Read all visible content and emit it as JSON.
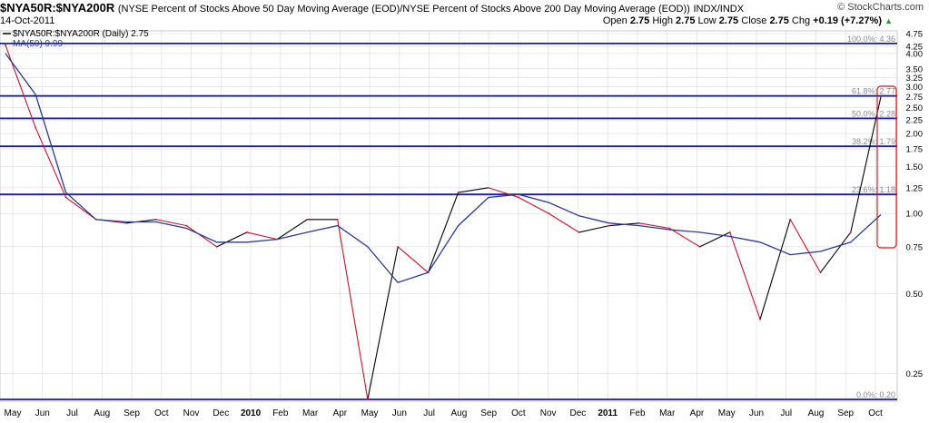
{
  "header": {
    "symbol": "$NYA50R:$NYA200R",
    "description": "(NYSE Percent of Stocks Above 50 Day Moving Average (EOD)/NYSE Percent of Stocks Above 200 Day Moving Average (EOD))",
    "exchange": "INDX/INDX",
    "credit": "© StockCharts.com",
    "date": "14-Oct-2011",
    "open_label": "Open",
    "open_value": "2.75",
    "high_label": "High",
    "high_value": "2.75",
    "low_label": "Low",
    "low_value": "2.75",
    "close_label": "Close",
    "close_value": "2.75",
    "chg_label": "Chg",
    "chg_value": "+0.19 (+7.27%)",
    "chg_icon": "up-triangle-icon"
  },
  "legend": {
    "series_label": "$NYA50R:$NYA200R (Daily) 2.75",
    "ma_label": "MA(50) 0.99"
  },
  "colors": {
    "price_up": "#000000",
    "price_down": "#c8102e",
    "ma": "#2a3a8c",
    "fib": "#1a1aa8",
    "highlight": "#cc2222",
    "grid": "#d8d8d8"
  },
  "chart_data": {
    "type": "line",
    "scale": "log",
    "ylim": [
      0.2,
      4.75
    ],
    "yticks": [
      "4.75",
      "4.25",
      "4.00",
      "3.50",
      "3.25",
      "3.00",
      "2.75",
      "2.50",
      "2.25",
      "2.00",
      "1.75",
      "1.50",
      "1.25",
      "1.00",
      "0.75",
      "0.50",
      "0.25"
    ],
    "x_labels": [
      "May",
      "Jun",
      "Jul",
      "Aug",
      "Sep",
      "Oct",
      "Nov",
      "Dec",
      "2010",
      "Feb",
      "Mar",
      "Apr",
      "May",
      "Jun",
      "Jul",
      "Aug",
      "Sep",
      "Oct",
      "Nov",
      "Dec",
      "2011",
      "Feb",
      "Mar",
      "Apr",
      "May",
      "Jun",
      "Jul",
      "Aug",
      "Sep",
      "Oct"
    ],
    "bold_x_labels": [
      "2010",
      "2011"
    ],
    "fib_levels": [
      {
        "label": "100.0%: 4.36",
        "value": 4.36
      },
      {
        "label": "61.8%: 2.77",
        "value": 2.77
      },
      {
        "label": "50.0%: 2.28",
        "value": 2.28
      },
      {
        "label": "38.2%: 1.79",
        "value": 1.79
      },
      {
        "label": "23.6%: 1.18",
        "value": 1.18
      },
      {
        "label": "0.0%: 0.20",
        "value": 0.2
      }
    ],
    "series": [
      {
        "name": "$NYA50R:$NYA200R (Daily)",
        "x": [
          0,
          1,
          2,
          3,
          4,
          5,
          6,
          7,
          8,
          9,
          10,
          11,
          12,
          13,
          14,
          15,
          16,
          17,
          18,
          19,
          20,
          21,
          22,
          23,
          24,
          25,
          26,
          27,
          28,
          29
        ],
        "values": [
          4.3,
          2.1,
          1.15,
          0.95,
          0.92,
          0.95,
          0.9,
          0.75,
          0.85,
          0.8,
          0.95,
          0.95,
          0.2,
          0.75,
          0.6,
          1.2,
          1.25,
          1.15,
          1.0,
          0.85,
          0.9,
          0.92,
          0.88,
          0.75,
          0.85,
          0.4,
          0.95,
          0.6,
          0.85,
          2.75
        ]
      },
      {
        "name": "MA(50)",
        "x": [
          0,
          1,
          2,
          3,
          4,
          5,
          6,
          7,
          8,
          9,
          10,
          11,
          12,
          13,
          14,
          15,
          16,
          17,
          18,
          19,
          20,
          21,
          22,
          23,
          24,
          25,
          26,
          27,
          28,
          29
        ],
        "values": [
          4.0,
          2.8,
          1.2,
          0.95,
          0.93,
          0.93,
          0.88,
          0.78,
          0.78,
          0.8,
          0.85,
          0.9,
          0.75,
          0.55,
          0.6,
          0.9,
          1.15,
          1.18,
          1.1,
          0.98,
          0.92,
          0.9,
          0.87,
          0.85,
          0.82,
          0.78,
          0.7,
          0.72,
          0.78,
          0.99
        ]
      }
    ]
  }
}
